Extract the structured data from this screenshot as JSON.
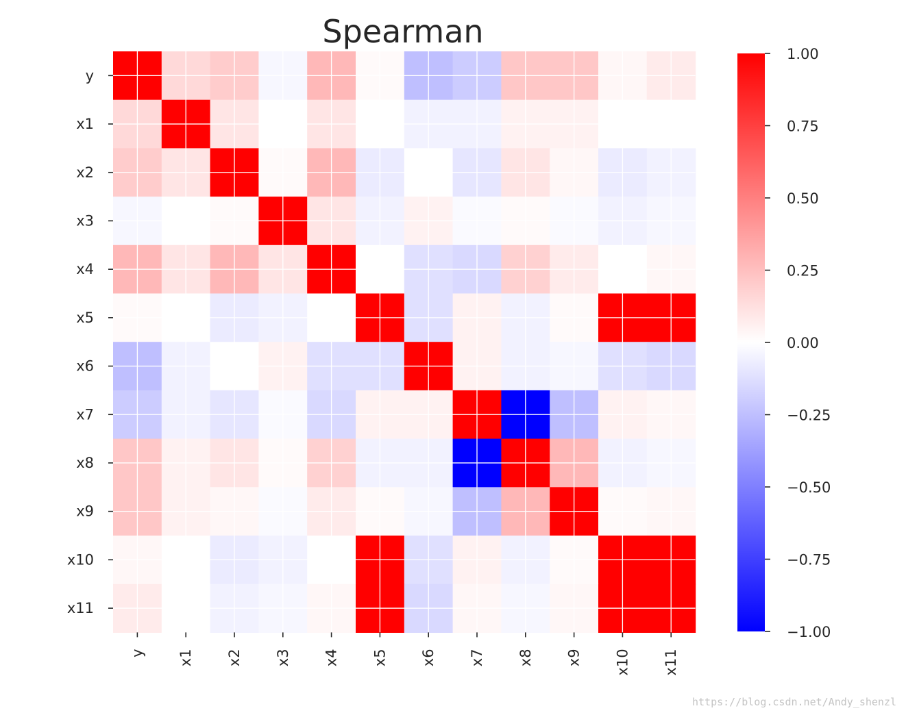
{
  "chart_data": {
    "type": "heatmap",
    "title": "Spearman",
    "rows": [
      "y",
      "x1",
      "x2",
      "x3",
      "x4",
      "x5",
      "x6",
      "x7",
      "x8",
      "x9",
      "x10",
      "x11"
    ],
    "columns": [
      "y",
      "x1",
      "x2",
      "x3",
      "x4",
      "x5",
      "x6",
      "x7",
      "x8",
      "x9",
      "x10",
      "x11"
    ],
    "values": [
      [
        1.0,
        0.15,
        0.2,
        -0.03,
        0.28,
        0.02,
        -0.25,
        -0.2,
        0.22,
        0.22,
        0.03,
        0.08
      ],
      [
        0.15,
        1.0,
        0.1,
        0.0,
        0.1,
        0.0,
        -0.05,
        -0.05,
        0.05,
        0.05,
        0.0,
        0.0
      ],
      [
        0.2,
        0.1,
        1.0,
        0.02,
        0.28,
        -0.08,
        0.0,
        -0.1,
        0.1,
        0.03,
        -0.08,
        -0.05
      ],
      [
        -0.03,
        0.0,
        0.02,
        1.0,
        0.1,
        -0.05,
        0.05,
        -0.02,
        0.02,
        -0.02,
        -0.05,
        -0.03
      ],
      [
        0.28,
        0.1,
        0.28,
        0.1,
        1.0,
        0.0,
        -0.12,
        -0.15,
        0.18,
        0.08,
        0.0,
        0.03
      ],
      [
        0.02,
        0.0,
        -0.08,
        -0.05,
        0.0,
        1.0,
        -0.12,
        0.05,
        -0.05,
        0.02,
        1.0,
        1.0
      ],
      [
        -0.25,
        -0.05,
        0.0,
        0.05,
        -0.12,
        -0.12,
        1.0,
        0.05,
        -0.05,
        -0.03,
        -0.12,
        -0.15
      ],
      [
        -0.2,
        -0.05,
        -0.1,
        -0.02,
        -0.15,
        0.05,
        0.05,
        1.0,
        -1.0,
        -0.25,
        0.05,
        0.03
      ],
      [
        0.22,
        0.05,
        0.1,
        0.02,
        0.18,
        -0.05,
        -0.05,
        -1.0,
        1.0,
        0.28,
        -0.05,
        -0.03
      ],
      [
        0.22,
        0.05,
        0.03,
        -0.02,
        0.08,
        0.02,
        -0.03,
        -0.25,
        0.28,
        1.0,
        0.02,
        0.03
      ],
      [
        0.03,
        0.0,
        -0.08,
        -0.05,
        0.0,
        1.0,
        -0.12,
        0.05,
        -0.05,
        0.02,
        1.0,
        1.0
      ],
      [
        0.08,
        0.0,
        -0.05,
        -0.03,
        0.03,
        1.0,
        -0.15,
        0.03,
        -0.03,
        0.03,
        1.0,
        1.0
      ]
    ],
    "colormap": {
      "name": "bwr",
      "low_color": "#0000ff",
      "mid_color": "#ffffff",
      "high_color": "#ff0000"
    },
    "vmin": -1.0,
    "vmax": 1.0,
    "colorbar": {
      "ticks": [
        1.0,
        0.75,
        0.5,
        0.25,
        0.0,
        -0.25,
        -0.5,
        -0.75,
        -1.0
      ],
      "tick_labels": [
        "1.00",
        "0.75",
        "0.50",
        "0.25",
        "0.00",
        "−0.25",
        "−0.50",
        "−0.75",
        "−1.00"
      ]
    },
    "gridlines": true,
    "xtick_rotation": 90
  },
  "colors": {
    "text": "#262626",
    "gridline": "#ffffff",
    "tick_mark": "#262626",
    "watermark": "#c4c4c4"
  },
  "watermark": "https://blog.csdn.net/Andy_shenzl"
}
